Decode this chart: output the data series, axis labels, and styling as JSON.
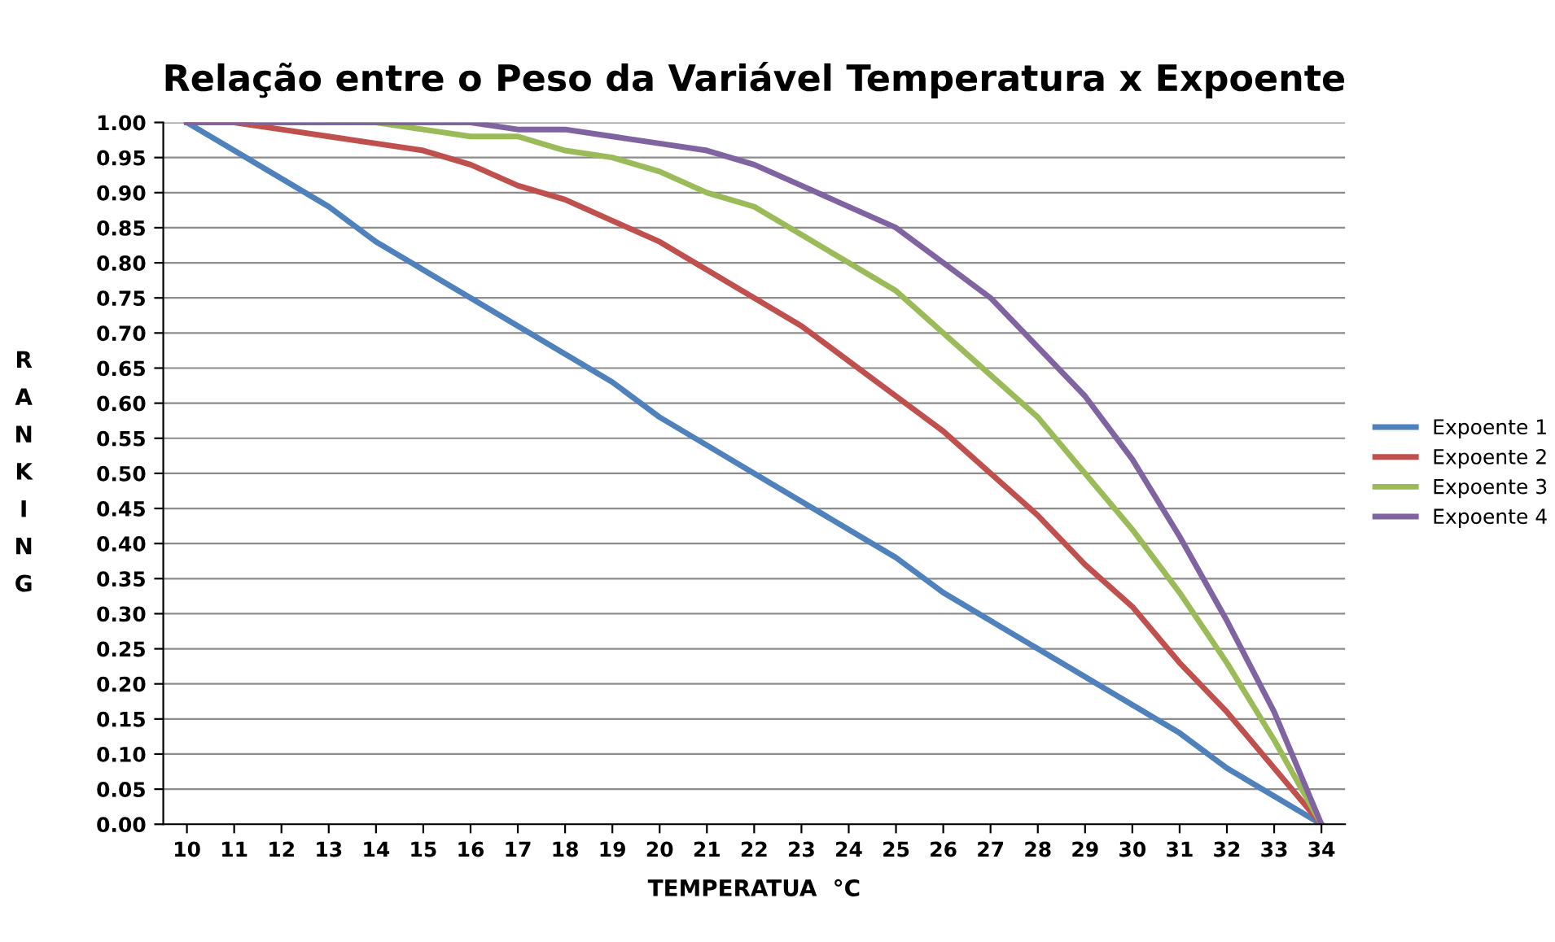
{
  "chart_data": {
    "type": "line",
    "title": "Relação entre o Peso da Variável Temperatura x Expoente",
    "xlabel": "TEMPERATUA  °C",
    "ylabel": "RANKING",
    "categories": [
      "10",
      "11",
      "12",
      "13",
      "14",
      "15",
      "16",
      "17",
      "18",
      "19",
      "20",
      "21",
      "22",
      "23",
      "24",
      "25",
      "26",
      "27",
      "28",
      "29",
      "30",
      "31",
      "32",
      "33",
      "34"
    ],
    "series": [
      {
        "name": "Expoente 1",
        "color": "#4f81bd",
        "values": [
          1.0,
          0.96,
          0.92,
          0.88,
          0.83,
          0.79,
          0.75,
          0.71,
          0.67,
          0.63,
          0.58,
          0.54,
          0.5,
          0.46,
          0.42,
          0.38,
          0.33,
          0.29,
          0.25,
          0.21,
          0.17,
          0.13,
          0.08,
          0.04,
          0.0
        ]
      },
      {
        "name": "Expoente 2",
        "color": "#c0504d",
        "values": [
          1.0,
          1.0,
          0.99,
          0.98,
          0.97,
          0.96,
          0.94,
          0.91,
          0.89,
          0.86,
          0.83,
          0.79,
          0.75,
          0.71,
          0.66,
          0.61,
          0.56,
          0.5,
          0.44,
          0.37,
          0.31,
          0.23,
          0.16,
          0.08,
          0.0
        ]
      },
      {
        "name": "Expoente 3",
        "color": "#9bbb59",
        "values": [
          null,
          null,
          null,
          1.0,
          1.0,
          0.99,
          0.98,
          0.98,
          0.96,
          0.95,
          0.93,
          0.9,
          0.88,
          0.84,
          0.8,
          0.76,
          0.7,
          0.64,
          0.58,
          0.5,
          0.42,
          0.33,
          0.23,
          0.12,
          0.0
        ]
      },
      {
        "name": "Expoente 4",
        "color": "#8064a2",
        "values": [
          1.0,
          1.0,
          1.0,
          1.0,
          1.0,
          1.0,
          1.0,
          0.99,
          0.99,
          0.98,
          0.97,
          0.96,
          0.94,
          0.91,
          0.88,
          0.85,
          0.8,
          0.75,
          0.68,
          0.61,
          0.52,
          0.41,
          0.29,
          0.16,
          0.0
        ]
      }
    ],
    "ylim": [
      0,
      1
    ],
    "yticks": [
      {
        "value": 0,
        "label": "0.00"
      },
      {
        "value": 0.05,
        "label": "0.05"
      },
      {
        "value": 0.1,
        "label": "0.10"
      },
      {
        "value": 0.15,
        "label": "0.15"
      },
      {
        "value": 0.2,
        "label": "0.20"
      },
      {
        "value": 0.25,
        "label": "0.25"
      },
      {
        "value": 0.3,
        "label": "0.30"
      },
      {
        "value": 0.35,
        "label": "0.35"
      },
      {
        "value": 0.4,
        "label": "0.40"
      },
      {
        "value": 0.45,
        "label": "0.45"
      },
      {
        "value": 0.5,
        "label": "0.50"
      },
      {
        "value": 0.55,
        "label": "0.55"
      },
      {
        "value": 0.6,
        "label": "0.60"
      },
      {
        "value": 0.65,
        "label": "0.65"
      },
      {
        "value": 0.7,
        "label": "0.70"
      },
      {
        "value": 0.75,
        "label": "0.75"
      },
      {
        "value": 0.8,
        "label": "0.80"
      },
      {
        "value": 0.85,
        "label": "0.85"
      },
      {
        "value": 0.9,
        "label": "0.90"
      },
      {
        "value": 0.95,
        "label": "0.95"
      },
      {
        "value": 1,
        "label": "1.00"
      }
    ],
    "grid": "y",
    "legend": "right",
    "marker": "none",
    "line_style": "solid"
  }
}
